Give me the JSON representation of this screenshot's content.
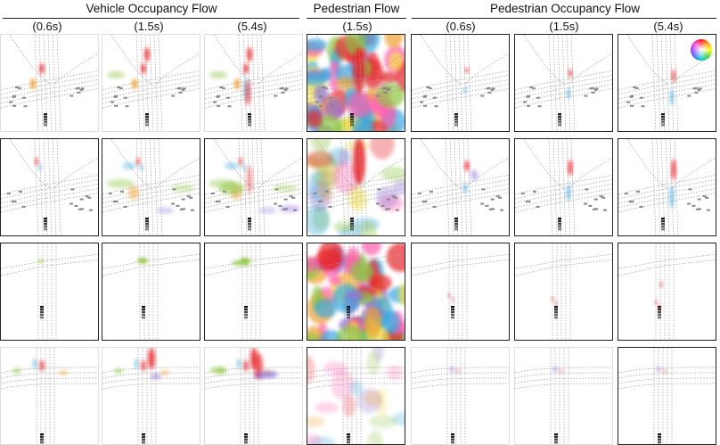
{
  "headers": {
    "vehicle_occupancy_flow": "Vehicle Occupancy Flow",
    "pedestrian_flow": "Pedestrian Flow",
    "pedestrian_occupancy_flow": "Pedestrian Occupancy Flow"
  },
  "timestamps": {
    "veh_t1": "(0.6s)",
    "veh_t2": "(1.5s)",
    "veh_t3": "(5.4s)",
    "ped_flow_t": "(1.5s)",
    "ped_occ_t1": "(0.6s)",
    "ped_occ_t2": "(1.5s)",
    "ped_occ_t3": "(5.4s)"
  },
  "legend": {
    "icon": "color-wheel-icon"
  },
  "colors": {
    "flow_red": "#e8262c",
    "flow_blue": "#3aa8e0",
    "flow_green": "#8cc63f",
    "flow_purple": "#8e6fd6",
    "flow_orange": "#f0a030",
    "map_lines": "#9a9a9a",
    "ego_vehicle": "#111111"
  },
  "rows": 4,
  "columns": [
    "vehicle-occupancy-0.6s",
    "vehicle-occupancy-1.5s",
    "vehicle-occupancy-5.4s",
    "pedestrian-flow-1.5s",
    "pedestrian-occupancy-0.6s",
    "pedestrian-occupancy-1.5s",
    "pedestrian-occupancy-5.4s"
  ]
}
